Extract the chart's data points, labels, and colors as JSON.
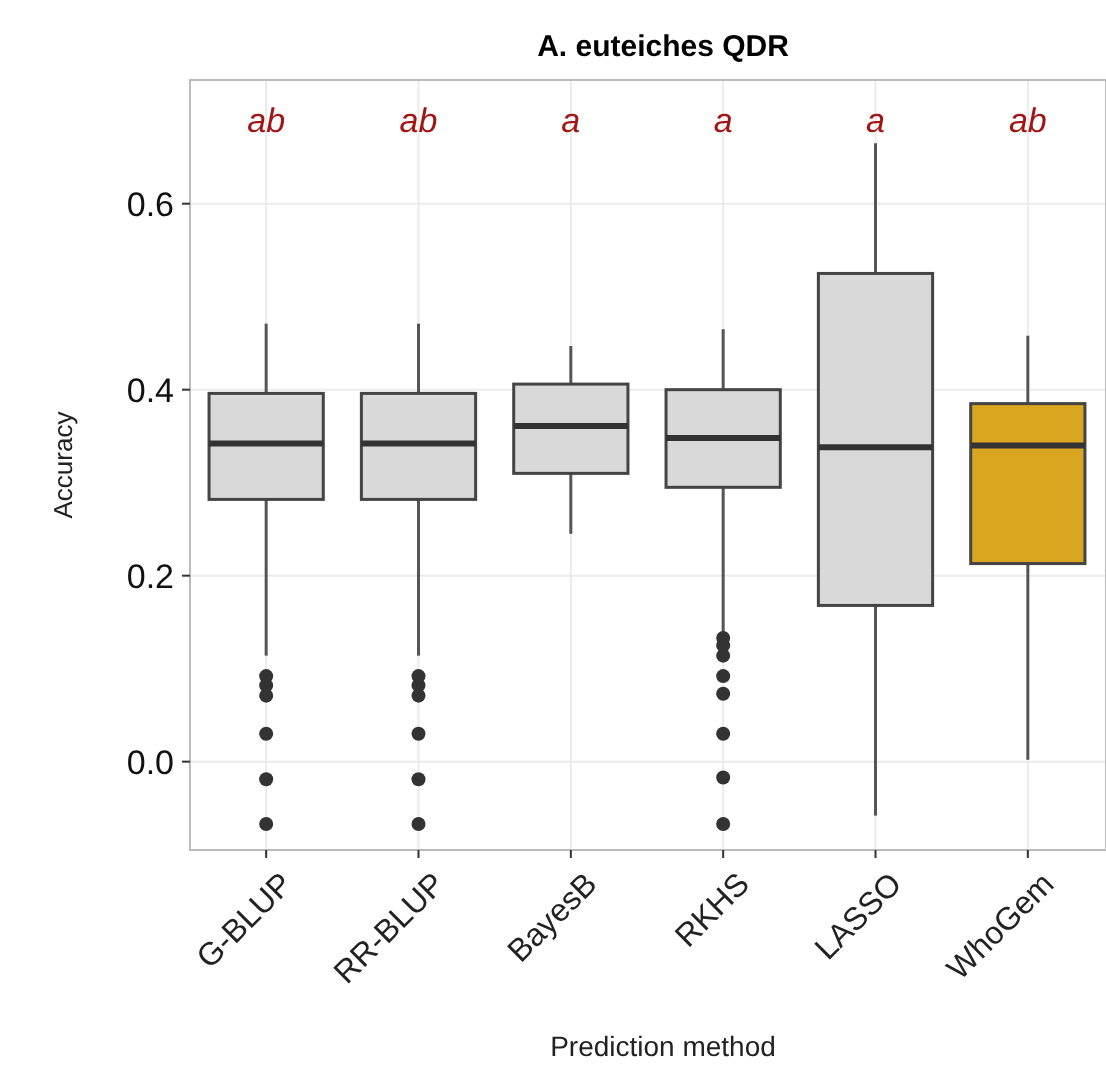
{
  "chart_data": {
    "type": "box",
    "title": "A. euteiches QDR",
    "xlabel": "Prediction method",
    "ylabel": "Accuracy",
    "categories": [
      "G-BLUP",
      "RR-BLUP",
      "BayesB",
      "RKHS",
      "LASSO",
      "WhoGem"
    ],
    "colors": [
      "#d9d9d9",
      "#d9d9d9",
      "#d9d9d9",
      "#d9d9d9",
      "#d9d9d9",
      "#daa520"
    ],
    "boxes": [
      {
        "low": 0.114,
        "q1": 0.282,
        "median": 0.342,
        "q3": 0.396,
        "high": 0.471,
        "outliers": [
          0.092,
          0.082,
          0.071,
          0.03,
          -0.019,
          -0.067
        ]
      },
      {
        "low": 0.114,
        "q1": 0.282,
        "median": 0.342,
        "q3": 0.396,
        "high": 0.471,
        "outliers": [
          0.092,
          0.082,
          0.071,
          0.03,
          -0.019,
          -0.067
        ]
      },
      {
        "low": 0.245,
        "q1": 0.31,
        "median": 0.361,
        "q3": 0.406,
        "high": 0.447
      },
      {
        "low": 0.138,
        "q1": 0.295,
        "median": 0.348,
        "q3": 0.4,
        "high": 0.465,
        "outliers": [
          0.133,
          0.125,
          0.114,
          0.092,
          0.073,
          0.03,
          -0.017,
          -0.067
        ]
      },
      {
        "low": -0.058,
        "q1": 0.168,
        "median": 0.338,
        "q3": 0.525,
        "high": 0.665
      },
      {
        "low": 0.002,
        "q1": 0.213,
        "median": 0.34,
        "q3": 0.385,
        "high": 0.458
      }
    ],
    "annotations": [
      "ab",
      "ab",
      "a",
      "a",
      "a",
      "ab"
    ],
    "ylim": [
      -0.095,
      0.733
    ],
    "yticks": [
      {
        "value": 0,
        "label": "0.0"
      },
      {
        "value": 0.2,
        "label": "0.2"
      },
      {
        "value": 0.4,
        "label": "0.4"
      },
      {
        "value": 0.6,
        "label": "0.6"
      }
    ],
    "grid": true
  }
}
